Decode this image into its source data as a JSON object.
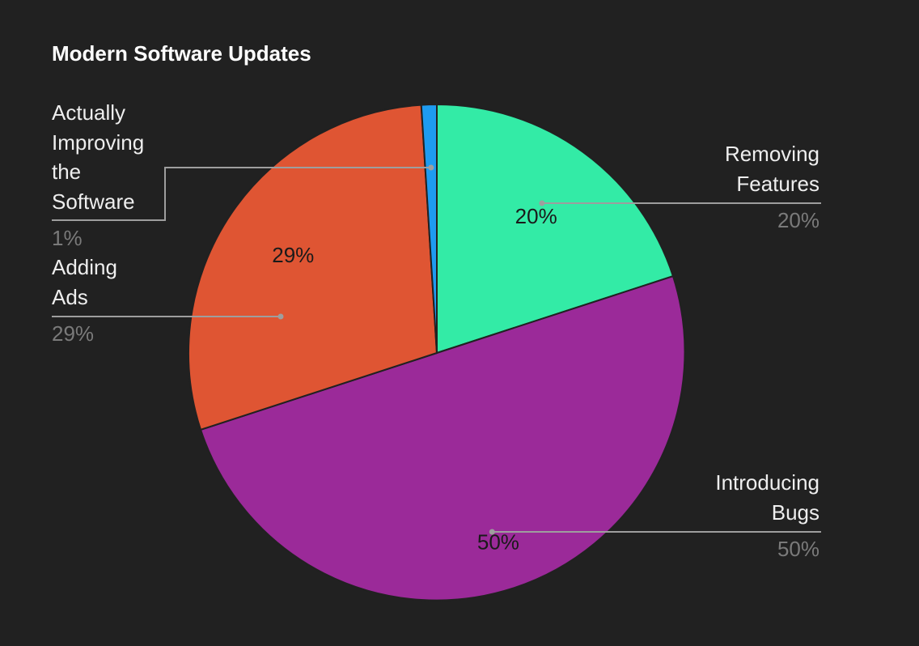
{
  "chart_data": {
    "type": "pie",
    "title": "Modern Software Updates",
    "slices": [
      {
        "name": "Removing Features",
        "value": 20,
        "label": "20%",
        "color": "#33eba6"
      },
      {
        "name": "Introducing Bugs",
        "value": 50,
        "label": "50%",
        "color": "#9b2a99"
      },
      {
        "name": "Adding Ads",
        "value": 29,
        "label": "29%",
        "color": "#df5533"
      },
      {
        "name": "Actually Improving the Software",
        "value": 1,
        "label": "1%",
        "color": "#1e9bf0"
      }
    ],
    "legend_placement": "callouts on both sides",
    "background_color": "#212121"
  }
}
